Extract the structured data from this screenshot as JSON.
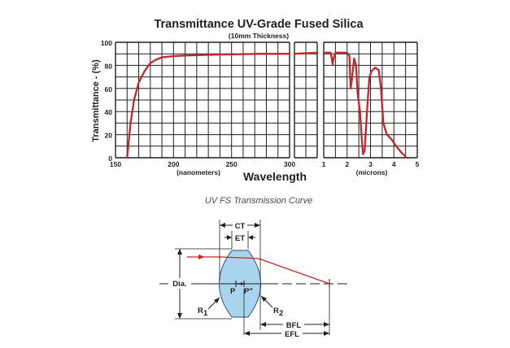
{
  "chart_data": {
    "type": "line",
    "title": "Transmittance UV-Grade Fused Silica",
    "subtitle": "(10mm Thickness)",
    "ylabel": "Transmittance - (%)",
    "xlabel": "Wavelength",
    "ylim": [
      0,
      100
    ],
    "yticks": [
      "0",
      "20",
      "40",
      "60",
      "80",
      "100"
    ],
    "panels": [
      {
        "name": "uv",
        "unit_label": "(nanometers)",
        "xlim": [
          150,
          300
        ],
        "xticks": [
          {
            "value": 150,
            "label": "150"
          },
          {
            "value": 200,
            "label": "200"
          },
          {
            "value": 250,
            "label": "250"
          },
          {
            "value": 300,
            "label": "300"
          }
        ],
        "series": [
          {
            "name": "Transmittance",
            "points": [
              [
                160,
                0
              ],
              [
                161,
                10
              ],
              [
                163,
                30
              ],
              [
                166,
                50
              ],
              [
                170,
                65
              ],
              [
                175,
                75
              ],
              [
                180,
                82
              ],
              [
                185,
                85
              ],
              [
                190,
                87
              ],
              [
                200,
                88
              ],
              [
                210,
                88.5
              ],
              [
                225,
                89
              ],
              [
                250,
                89.5
              ],
              [
                275,
                90
              ],
              [
                300,
                90
              ]
            ]
          }
        ]
      },
      {
        "name": "visible",
        "unit_label": "",
        "xlim": [
          300,
          1000
        ],
        "xticks": [],
        "series": [
          {
            "name": "Transmittance",
            "points": [
              [
                300,
                90
              ],
              [
                1000,
                91
              ]
            ]
          }
        ]
      },
      {
        "name": "ir",
        "unit_label": "(microns)",
        "xlim": [
          1,
          5
        ],
        "xticks": [
          {
            "value": 1,
            "label": "1"
          },
          {
            "value": 2,
            "label": "2"
          },
          {
            "value": 3,
            "label": "3"
          },
          {
            "value": 4,
            "label": "4"
          },
          {
            "value": 5,
            "label": "5"
          }
        ],
        "series": [
          {
            "name": "Transmittance",
            "points": [
              [
                1.0,
                91
              ],
              [
                1.3,
                91
              ],
              [
                1.35,
                85
              ],
              [
                1.38,
                81
              ],
              [
                1.42,
                86
              ],
              [
                1.5,
                91
              ],
              [
                2.0,
                91
              ],
              [
                2.1,
                88
              ],
              [
                2.15,
                60
              ],
              [
                2.2,
                67
              ],
              [
                2.3,
                86
              ],
              [
                2.38,
                80
              ],
              [
                2.45,
                55
              ],
              [
                2.55,
                40
              ],
              [
                2.62,
                18
              ],
              [
                2.68,
                3
              ],
              [
                2.75,
                6
              ],
              [
                2.85,
                40
              ],
              [
                2.95,
                70
              ],
              [
                3.05,
                75
              ],
              [
                3.2,
                78
              ],
              [
                3.35,
                76
              ],
              [
                3.45,
                60
              ],
              [
                3.55,
                30
              ],
              [
                3.7,
                20
              ],
              [
                3.9,
                16
              ],
              [
                4.1,
                10
              ],
              [
                4.3,
                5
              ],
              [
                4.5,
                1
              ]
            ]
          }
        ]
      }
    ]
  },
  "caption": "UV FS Transmission Curve",
  "diagram": {
    "labels": {
      "ct": "CT",
      "et": "ET",
      "dia": "Dia.",
      "p": "P",
      "p_prime": "P\"",
      "r1": "R",
      "r1_sub": "1",
      "r2": "R",
      "r2_sub": "2",
      "bfl": "BFL",
      "efl": "EFL"
    },
    "colors": {
      "lens_fill": "#a9d4ee",
      "lens_stroke": "#4a6f8e",
      "ray": "#c1272d",
      "line": "#231f20"
    }
  }
}
